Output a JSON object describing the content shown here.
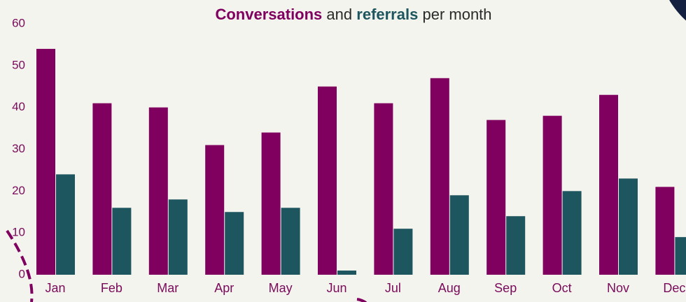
{
  "chart_data": {
    "type": "bar",
    "title_joiner": "and",
    "title_suffix": "per month",
    "categories": [
      "Jan",
      "Feb",
      "Mar",
      "Apr",
      "May",
      "Jun",
      "Jul",
      "Aug",
      "Sep",
      "Oct",
      "Nov",
      "Dec"
    ],
    "series": [
      {
        "name": "Conversations",
        "color": "#80005f",
        "values": [
          54,
          41,
          40,
          31,
          34,
          45,
          41,
          47,
          37,
          38,
          43,
          21
        ]
      },
      {
        "name": "referrals",
        "color": "#1e5660",
        "values": [
          24,
          16,
          18,
          15,
          16,
          1,
          11,
          19,
          14,
          20,
          23,
          9
        ]
      }
    ],
    "ylim": [
      0,
      60
    ],
    "yticks": [
      0,
      10,
      20,
      30,
      40,
      50,
      60
    ],
    "grid": false
  }
}
